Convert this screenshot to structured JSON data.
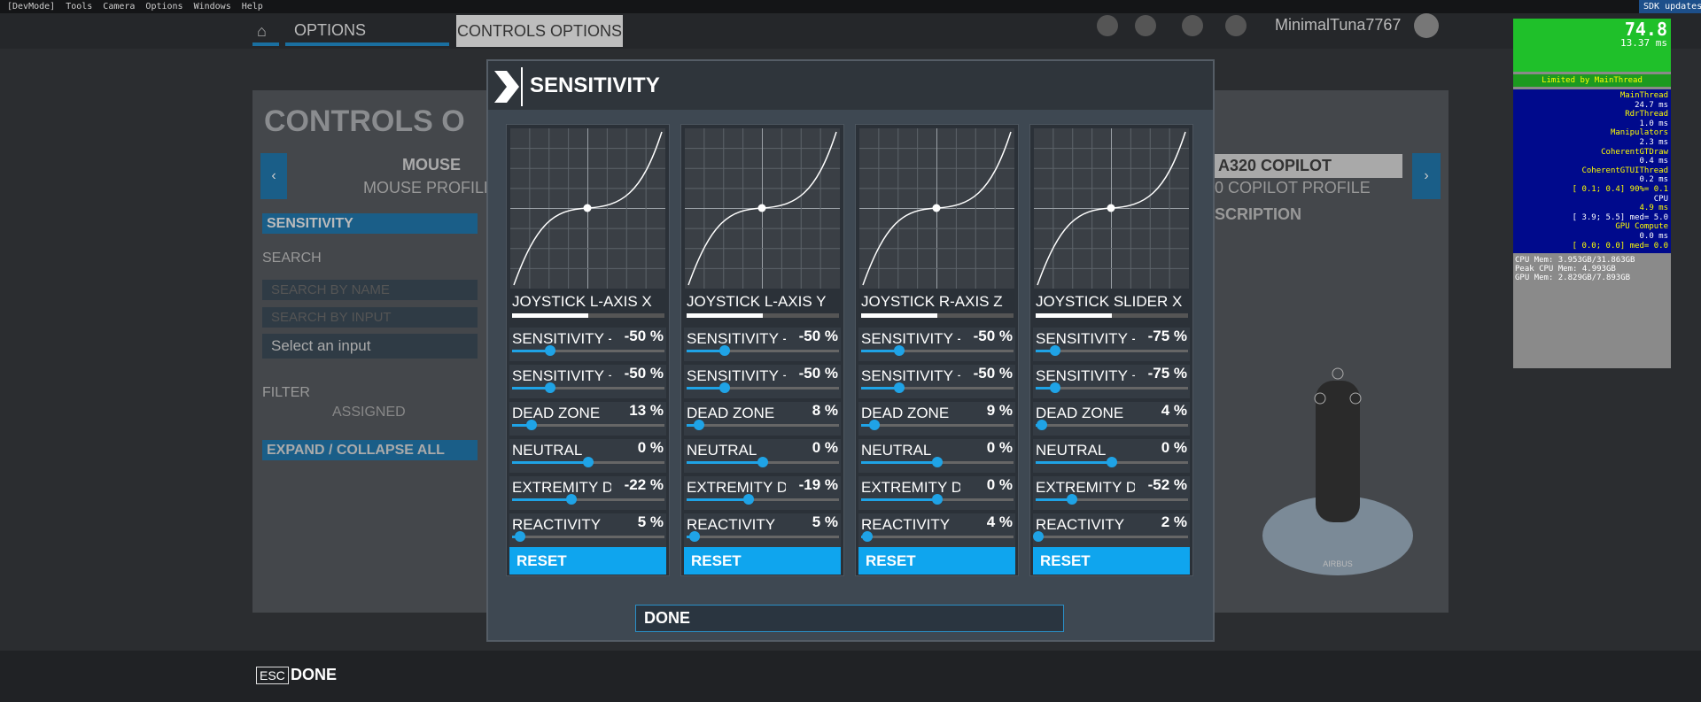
{
  "menubar": {
    "items": [
      "[DevMode]",
      "Tools",
      "Camera",
      "Options",
      "Windows",
      "Help"
    ],
    "sdk": "SDK updates"
  },
  "nav": {
    "options": "OPTIONS",
    "controls": "CONTROLS OPTIONS",
    "user": "MinimalTuna7767"
  },
  "left": {
    "title": "CONTROLS O",
    "device": "MOUSE",
    "profile": "MOUSE PROFILE",
    "sensitivity": "SENSITIVITY",
    "search": "SEARCH",
    "search_name": "SEARCH BY NAME",
    "search_input": "SEARCH BY INPUT",
    "select": "Select an input",
    "filter": "FILTER",
    "assigned": "ASSIGNED",
    "expand": "EXPAND / COLLAPSE ALL"
  },
  "right": {
    "device": "A320 COPILOT",
    "profile": "0 COPILOT PROFILE",
    "description": "SCRIPTION",
    "brand": "AIRBUS"
  },
  "dialog": {
    "title": "SENSITIVITY",
    "done": "DONE",
    "panels": [
      {
        "name": "JOYSTICK L-AXIS X",
        "reset": "RESET",
        "sliders": [
          {
            "label": "SENSITIVITY -",
            "value": -50,
            "value_label": "-50 %"
          },
          {
            "label": "SENSITIVITY +",
            "value": -50,
            "value_label": "-50 %"
          },
          {
            "label": "DEAD ZONE",
            "value": 13,
            "value_label": "13 %"
          },
          {
            "label": "NEUTRAL",
            "value": 0,
            "value_label": "0 %"
          },
          {
            "label": "EXTREMITY DE.",
            "value": -22,
            "value_label": "-22 %"
          },
          {
            "label": "REACTIVITY",
            "value": 5,
            "value_label": "5 %"
          }
        ]
      },
      {
        "name": "JOYSTICK L-AXIS Y",
        "reset": "RESET",
        "sliders": [
          {
            "label": "SENSITIVITY -",
            "value": -50,
            "value_label": "-50 %"
          },
          {
            "label": "SENSITIVITY +",
            "value": -50,
            "value_label": "-50 %"
          },
          {
            "label": "DEAD ZONE",
            "value": 8,
            "value_label": "8 %"
          },
          {
            "label": "NEUTRAL",
            "value": 0,
            "value_label": "0 %"
          },
          {
            "label": "EXTREMITY DE.",
            "value": -19,
            "value_label": "-19 %"
          },
          {
            "label": "REACTIVITY",
            "value": 5,
            "value_label": "5 %"
          }
        ]
      },
      {
        "name": "JOYSTICK R-AXIS Z",
        "reset": "RESET",
        "sliders": [
          {
            "label": "SENSITIVITY -",
            "value": -50,
            "value_label": "-50 %"
          },
          {
            "label": "SENSITIVITY +",
            "value": -50,
            "value_label": "-50 %"
          },
          {
            "label": "DEAD ZONE",
            "value": 9,
            "value_label": "9 %"
          },
          {
            "label": "NEUTRAL",
            "value": 0,
            "value_label": "0 %"
          },
          {
            "label": "EXTREMITY DEAD",
            "value": 0,
            "value_label": "0 %"
          },
          {
            "label": "REACTIVITY",
            "value": 4,
            "value_label": "4 %"
          }
        ]
      },
      {
        "name": "JOYSTICK SLIDER X",
        "reset": "RESET",
        "sliders": [
          {
            "label": "SENSITIVITY -",
            "value": -75,
            "value_label": "-75 %"
          },
          {
            "label": "SENSITIVITY +",
            "value": -75,
            "value_label": "-75 %"
          },
          {
            "label": "DEAD ZONE",
            "value": 4,
            "value_label": "4 %"
          },
          {
            "label": "NEUTRAL",
            "value": 0,
            "value_label": "0 %"
          },
          {
            "label": "EXTREMITY DE.",
            "value": -52,
            "value_label": "-52 %"
          },
          {
            "label": "REACTIVITY",
            "value": 2,
            "value_label": "2 %"
          }
        ]
      }
    ]
  },
  "footer": {
    "key": "ESC",
    "action": "DONE"
  },
  "perf": {
    "fps": "74.8",
    "frame": "13.37 ms",
    "limited": "Limited by MainThread",
    "threads": [
      "MainThread",
      "24.7 ms",
      "RdrThread",
      "1.0 ms",
      "Manipulators",
      "2.3 ms",
      "CoherentGTDraw",
      "0.4 ms",
      "CoherentGTUIThread",
      "0.2 ms",
      "[ 0.1; 0.4] 90%= 0.1",
      "CPU",
      "4.9 ms",
      "[ 3.9; 5.5] med= 5.0",
      "GPU Compute",
      "0.0 ms",
      "[ 0.0; 0.0] med= 0.0"
    ],
    "mem": [
      "CPU Mem: 3.953GB/31.863GB",
      "Peak CPU Mem: 4.993GB",
      "GPU Mem: 2.829GB/7.893GB"
    ]
  }
}
